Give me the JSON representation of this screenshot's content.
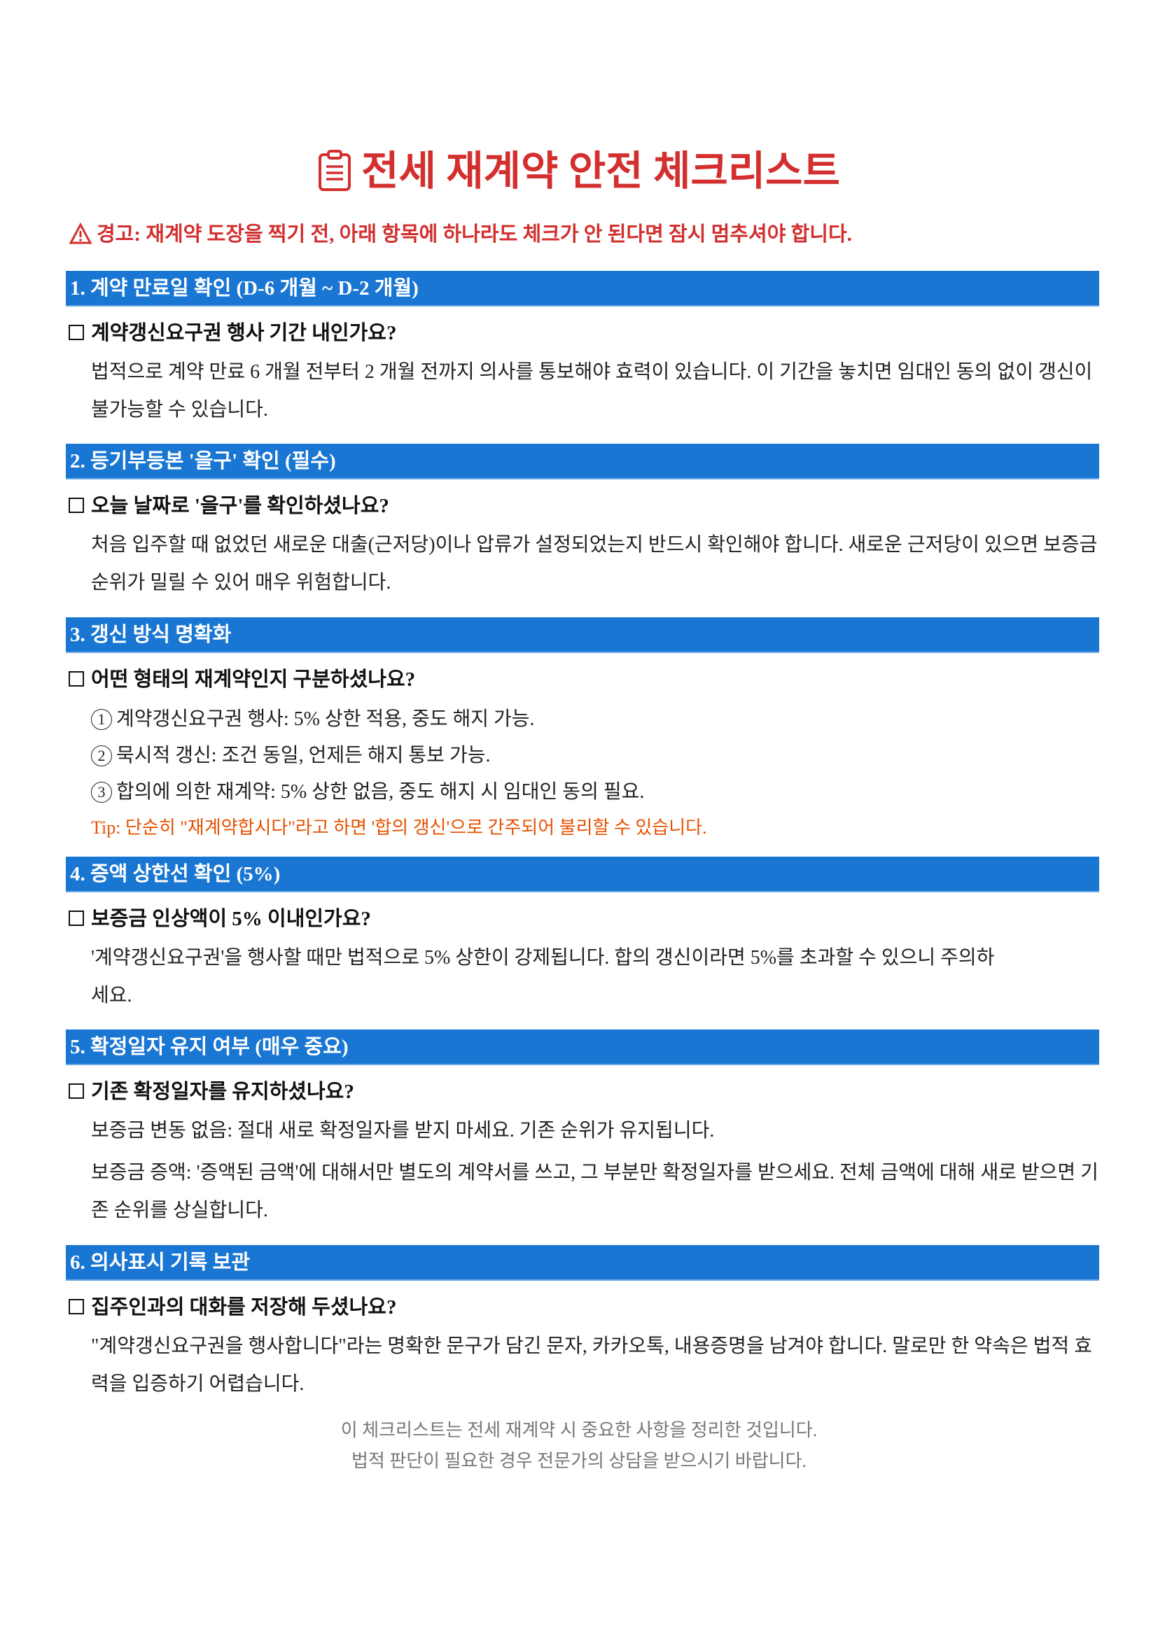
{
  "title": "전세 재계약 안전 체크리스트",
  "warning": "경고: 재계약 도장을 찍기 전, 아래 항목에 하나라도 체크가 안 된다면 잠시 멈추셔야 합니다.",
  "colors": {
    "accent": "#1976d2",
    "title": "#d32f2f",
    "tip": "#e65100",
    "footer": "#777777"
  },
  "sections": [
    {
      "header": "1. 계약 만료일 확인 (D-6 개월 ~ D-2 개월)",
      "question": "계약갱신요구권 행사 기간 내인가요?",
      "body": [
        "법적으로 계약 만료 6 개월 전부터 2 개월 전까지 의사를 통보해야 효력이 있습니다. 이 기간을 놓치면 임대인 동의 없이 갱신이 불가능할 수 있습니다."
      ]
    },
    {
      "header": "2. 등기부등본 '을구' 확인 (필수)",
      "question": "오늘 날짜로 '을구'를 확인하셨나요?",
      "body": [
        "처음 입주할 때 없었던 새로운 대출(근저당)이나 압류가 설정되었는지 반드시 확인해야 합니다. 새로운 근저당이 있으면 보증금 순위가 밀릴 수 있어 매우 위험합니다."
      ]
    },
    {
      "header": "3. 갱신 방식 명확화",
      "question": "어떤 형태의 재계약인지 구분하셨나요?",
      "items": [
        {
          "num": "1",
          "text": "계약갱신요구권 행사: 5% 상한 적용, 중도 해지 가능."
        },
        {
          "num": "2",
          "text": "묵시적 갱신: 조건 동일, 언제든 해지 통보 가능."
        },
        {
          "num": "3",
          "text": "합의에 의한 재계약: 5% 상한 없음, 중도 해지 시 임대인 동의 필요."
        }
      ],
      "tip": "Tip: 단순히 \"재계약합시다\"라고 하면 '합의 갱신'으로 간주되어 불리할 수 있습니다."
    },
    {
      "header": "4. 증액 상한선 확인 (5%)",
      "question": "보증금 인상액이 5% 이내인가요?",
      "body": [
        "'계약갱신요구권'을 행사할 때만 법적으로 5% 상한이 강제됩니다. 합의 갱신이라면 5%를 초과할 수 있으니 주의하세요."
      ]
    },
    {
      "header": "5. 확정일자 유지 여부 (매우 중요)",
      "question": "기존 확정일자를 유지하셨나요?",
      "body": [
        "보증금 변동 없음: 절대 새로 확정일자를 받지 마세요. 기존 순위가 유지됩니다.",
        "보증금 증액: '증액된 금액'에 대해서만 별도의 계약서를 쓰고, 그 부분만 확정일자를 받으세요. 전체 금액에 대해 새로 받으면 기존 순위를 상실합니다."
      ]
    },
    {
      "header": "6. 의사표시 기록 보관",
      "question": "집주인과의 대화를 저장해 두셨나요?",
      "body": [
        "\"계약갱신요구권을 행사합니다\"라는 명확한 문구가 담긴 문자, 카카오톡, 내용증명을 남겨야 합니다. 말로만 한 약속은 법적 효력을 입증하기 어렵습니다."
      ]
    }
  ],
  "footer": [
    "이 체크리스트는 전세 재계약 시 중요한 사항을 정리한 것입니다.",
    "법적 판단이 필요한 경우 전문가의 상담을 받으시기 바랍니다."
  ]
}
